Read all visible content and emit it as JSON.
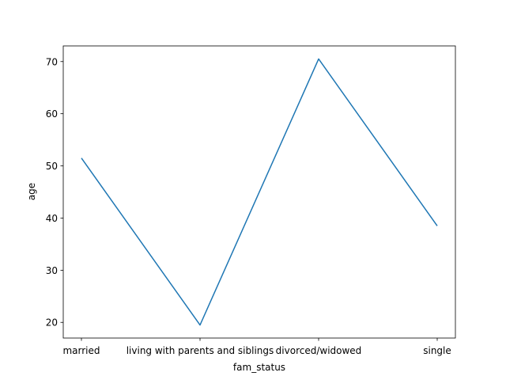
{
  "chart_data": {
    "type": "line",
    "title": "",
    "xlabel": "fam_status",
    "ylabel": "age",
    "categories": [
      "married",
      "living with parents and siblings",
      "divorced/widowed",
      "single"
    ],
    "series": [
      {
        "values": [
          51.5,
          19.5,
          70.5,
          38.5
        ]
      }
    ],
    "ylim": [
      17.0,
      73.0
    ],
    "yticks": [
      20,
      30,
      40,
      50,
      60,
      70
    ],
    "grid": false,
    "colors": {
      "line": "#1f77b4",
      "axis": "#000000"
    }
  }
}
